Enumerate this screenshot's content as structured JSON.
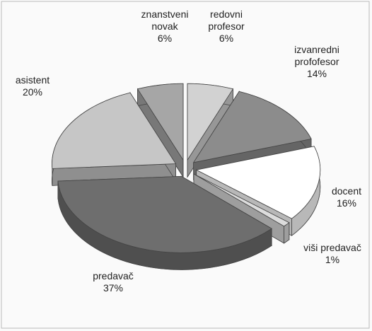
{
  "chart_data": {
    "type": "pie3d",
    "categories": [
      "redovni profesor",
      "izvanredni profofesor",
      "docent",
      "viši predavač",
      "predavač",
      "asistent",
      "znanstveni novak"
    ],
    "values": [
      6,
      14,
      16,
      1,
      37,
      20,
      6
    ],
    "value_labels": [
      "6%",
      "14%",
      "16%",
      "1%",
      "37%",
      "20%",
      "6%"
    ],
    "colors": [
      "#d2d2d2",
      "#8c8c8c",
      "#ffffff",
      "#dcdcdc",
      "#6e6e6e",
      "#c6c6c6",
      "#a6a6a6"
    ]
  }
}
